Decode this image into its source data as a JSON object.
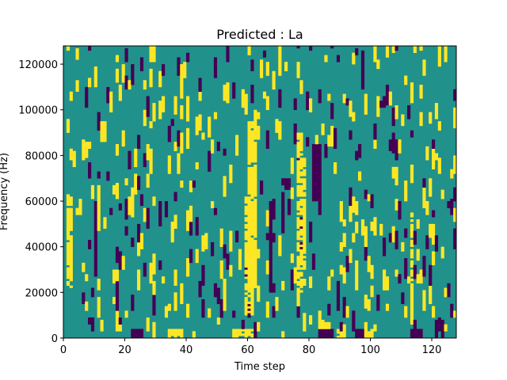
{
  "chart_data": {
    "type": "heatmap",
    "title": "Predicted : La",
    "xlabel": "Time step",
    "ylabel": "Frequency (Hz)",
    "xlim": [
      0,
      128
    ],
    "ylim": [
      0,
      128000
    ],
    "xticks": [
      0,
      20,
      40,
      60,
      80,
      100,
      120
    ],
    "yticks": [
      0,
      20000,
      40000,
      60000,
      80000,
      100000,
      120000
    ],
    "grid": false,
    "colormap": "viridis",
    "colors": {
      "low": "#440154",
      "mid": "#21918c",
      "high": "#fde725"
    },
    "n_time": 128,
    "n_freq": 128,
    "freq_step": 1000,
    "background_value": 0,
    "high_columns": [
      {
        "t": [
          59,
          62
        ],
        "f": [
          10000,
          62000
        ]
      },
      {
        "t": [
          60,
          63
        ],
        "f": [
          22000,
          95000
        ]
      },
      {
        "t": [
          76,
          78
        ],
        "f": [
          20000,
          90000
        ]
      },
      {
        "t": [
          78,
          79
        ],
        "f": [
          30000,
          80000
        ]
      },
      {
        "t": [
          1,
          3
        ],
        "f": [
          22000,
          62000
        ]
      },
      {
        "t": [
          113,
          114
        ],
        "f": [
          10000,
          55000
        ]
      }
    ],
    "low_columns": [
      {
        "t": [
          81,
          84
        ],
        "f": [
          60000,
          85000
        ]
      },
      {
        "t": [
          10,
          11
        ],
        "f": [
          30000,
          60000
        ]
      },
      {
        "t": [
          67,
          68
        ],
        "f": [
          20000,
          60000
        ]
      },
      {
        "t": [
          72,
          74
        ],
        "f": [
          65000,
          70000
        ]
      }
    ],
    "high_bottom": [
      {
        "t": [
          34,
          39
        ],
        "f": [
          0,
          4000
        ]
      },
      {
        "t": [
          55,
          62
        ],
        "f": [
          0,
          4000
        ]
      },
      {
        "t": [
          89,
          92
        ],
        "f": [
          0,
          4000
        ]
      },
      {
        "t": [
          98,
          101
        ],
        "f": [
          0,
          4000
        ]
      }
    ],
    "low_bottom": [
      {
        "t": [
          22,
          26
        ],
        "f": [
          0,
          4000
        ]
      },
      {
        "t": [
          83,
          88
        ],
        "f": [
          0,
          4000
        ]
      },
      {
        "t": [
          95,
          98
        ],
        "f": [
          0,
          4000
        ]
      },
      {
        "t": [
          113,
          117
        ],
        "f": [
          0,
          4000
        ]
      }
    ],
    "scatter_density": {
      "high": 0.05,
      "low": 0.035,
      "min_len_hz": 3000,
      "max_len_hz": 10000
    }
  }
}
